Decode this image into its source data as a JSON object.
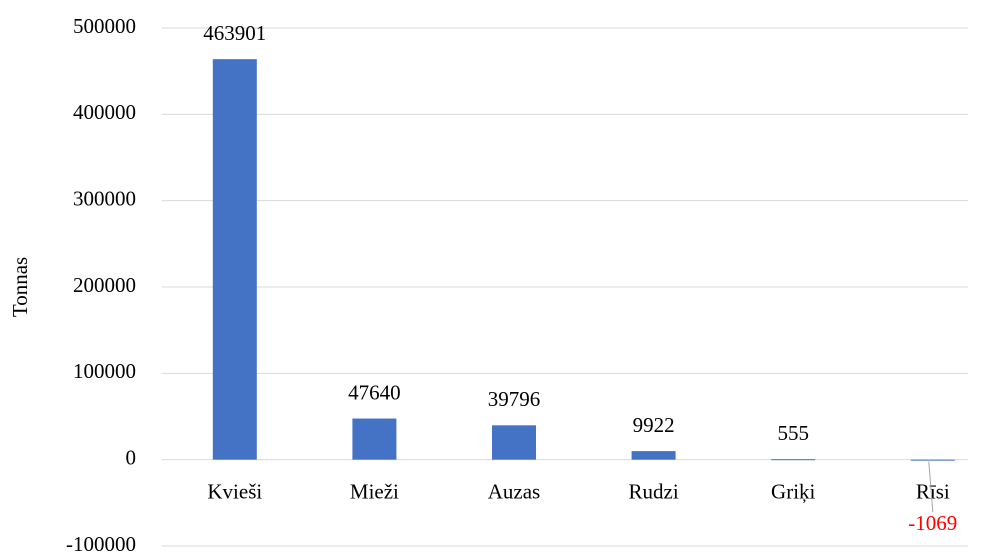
{
  "chart_data": {
    "type": "bar",
    "y_label": "Tonnas",
    "categories": [
      "Kvieši",
      "Mieži",
      "Auzas",
      "Rudzi",
      "Griķi",
      "Rīsi"
    ],
    "values": [
      463901,
      47640,
      39796,
      9922,
      555,
      -1069
    ],
    "color": "#4472c4",
    "negative_label_color": "#ff0000",
    "ylim": [
      -100000,
      500000
    ],
    "yticks": [
      -100000,
      0,
      100000,
      200000,
      300000,
      400000,
      500000
    ],
    "grid": true
  }
}
